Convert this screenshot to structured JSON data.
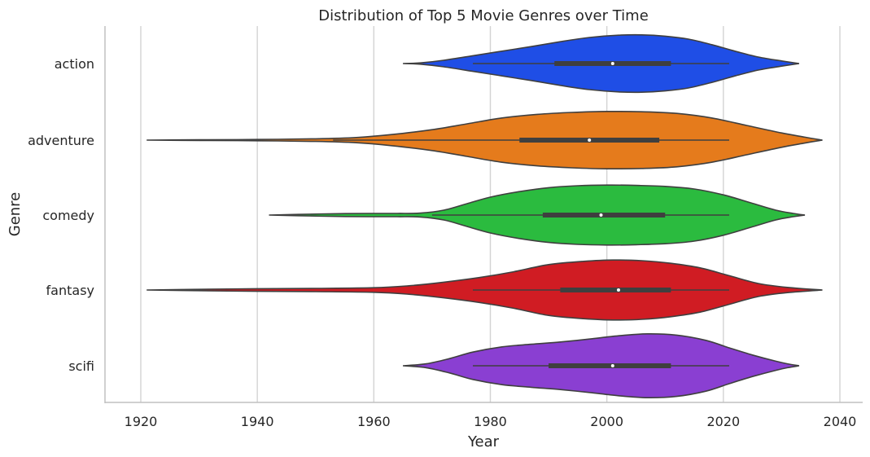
{
  "chart_data": {
    "type": "violin",
    "orientation": "horizontal",
    "title": "Distribution of Top 5 Movie Genres over Time",
    "xlabel": "Year",
    "ylabel": "Genre",
    "xlim": [
      1914,
      2044
    ],
    "xticks": [
      1920,
      1940,
      1960,
      1980,
      2000,
      2020,
      2040
    ],
    "grid": "vertical",
    "categories": [
      "action",
      "adventure",
      "comedy",
      "fantasy",
      "scifi"
    ],
    "series": [
      {
        "name": "action",
        "color": "#1f4ee6",
        "range": [
          1965,
          2033
        ],
        "whisker": [
          1977,
          2021
        ],
        "quartiles": [
          1991,
          2001,
          2011
        ],
        "profile": [
          [
            1965,
            0.0
          ],
          [
            1968,
            0.02
          ],
          [
            1972,
            0.1
          ],
          [
            1977,
            0.24
          ],
          [
            1982,
            0.38
          ],
          [
            1987,
            0.52
          ],
          [
            1992,
            0.67
          ],
          [
            1997,
            0.8
          ],
          [
            2002,
            0.87
          ],
          [
            2006,
            0.88
          ],
          [
            2010,
            0.84
          ],
          [
            2014,
            0.75
          ],
          [
            2018,
            0.58
          ],
          [
            2022,
            0.38
          ],
          [
            2026,
            0.2
          ],
          [
            2030,
            0.08
          ],
          [
            2033,
            0.0
          ]
        ]
      },
      {
        "name": "adventure",
        "color": "#e57b1c",
        "range": [
          1921,
          2037
        ],
        "whisker": [
          1953,
          2021
        ],
        "quartiles": [
          1985,
          1997,
          2009
        ],
        "profile": [
          [
            1921,
            0.0
          ],
          [
            1930,
            0.01
          ],
          [
            1940,
            0.02
          ],
          [
            1950,
            0.04
          ],
          [
            1957,
            0.08
          ],
          [
            1963,
            0.17
          ],
          [
            1970,
            0.32
          ],
          [
            1976,
            0.5
          ],
          [
            1982,
            0.68
          ],
          [
            1988,
            0.79
          ],
          [
            1994,
            0.85
          ],
          [
            2000,
            0.88
          ],
          [
            2006,
            0.87
          ],
          [
            2012,
            0.82
          ],
          [
            2018,
            0.68
          ],
          [
            2024,
            0.45
          ],
          [
            2030,
            0.22
          ],
          [
            2034,
            0.09
          ],
          [
            2037,
            0.0
          ]
        ]
      },
      {
        "name": "comedy",
        "color": "#2bbb3f",
        "range": [
          1942,
          2034
        ],
        "whisker": [
          1970,
          2021
        ],
        "quartiles": [
          1989,
          1999,
          2010
        ],
        "profile": [
          [
            1942,
            0.0
          ],
          [
            1947,
            0.02
          ],
          [
            1953,
            0.04
          ],
          [
            1959,
            0.05
          ],
          [
            1964,
            0.05
          ],
          [
            1968,
            0.06
          ],
          [
            1972,
            0.15
          ],
          [
            1976,
            0.35
          ],
          [
            1980,
            0.55
          ],
          [
            1985,
            0.72
          ],
          [
            1990,
            0.84
          ],
          [
            1995,
            0.9
          ],
          [
            2000,
            0.92
          ],
          [
            2005,
            0.91
          ],
          [
            2010,
            0.88
          ],
          [
            2015,
            0.8
          ],
          [
            2020,
            0.62
          ],
          [
            2025,
            0.36
          ],
          [
            2029,
            0.15
          ],
          [
            2032,
            0.05
          ],
          [
            2034,
            0.0
          ]
        ]
      },
      {
        "name": "fantasy",
        "color": "#d01c23",
        "range": [
          1921,
          2037
        ],
        "whisker": [
          1977,
          2021
        ],
        "quartiles": [
          1992,
          2002,
          2011
        ],
        "profile": [
          [
            1921,
            0.0
          ],
          [
            1930,
            0.02
          ],
          [
            1940,
            0.04
          ],
          [
            1950,
            0.05
          ],
          [
            1960,
            0.07
          ],
          [
            1966,
            0.13
          ],
          [
            1972,
            0.24
          ],
          [
            1978,
            0.38
          ],
          [
            1984,
            0.56
          ],
          [
            1990,
            0.78
          ],
          [
            1996,
            0.88
          ],
          [
            2001,
            0.92
          ],
          [
            2006,
            0.9
          ],
          [
            2011,
            0.82
          ],
          [
            2016,
            0.68
          ],
          [
            2021,
            0.44
          ],
          [
            2026,
            0.2
          ],
          [
            2031,
            0.08
          ],
          [
            2037,
            0.0
          ]
        ]
      },
      {
        "name": "scifi",
        "color": "#8a3fd2",
        "range": [
          1965,
          2033
        ],
        "whisker": [
          1977,
          2021
        ],
        "quartiles": [
          1990,
          2001,
          2011
        ],
        "profile": [
          [
            1965,
            0.0
          ],
          [
            1969,
            0.06
          ],
          [
            1973,
            0.22
          ],
          [
            1977,
            0.42
          ],
          [
            1982,
            0.58
          ],
          [
            1987,
            0.66
          ],
          [
            1992,
            0.73
          ],
          [
            1997,
            0.82
          ],
          [
            2002,
            0.92
          ],
          [
            2007,
            0.98
          ],
          [
            2012,
            0.94
          ],
          [
            2017,
            0.78
          ],
          [
            2021,
            0.55
          ],
          [
            2025,
            0.33
          ],
          [
            2029,
            0.14
          ],
          [
            2031,
            0.06
          ],
          [
            2033,
            0.0
          ]
        ]
      }
    ]
  }
}
